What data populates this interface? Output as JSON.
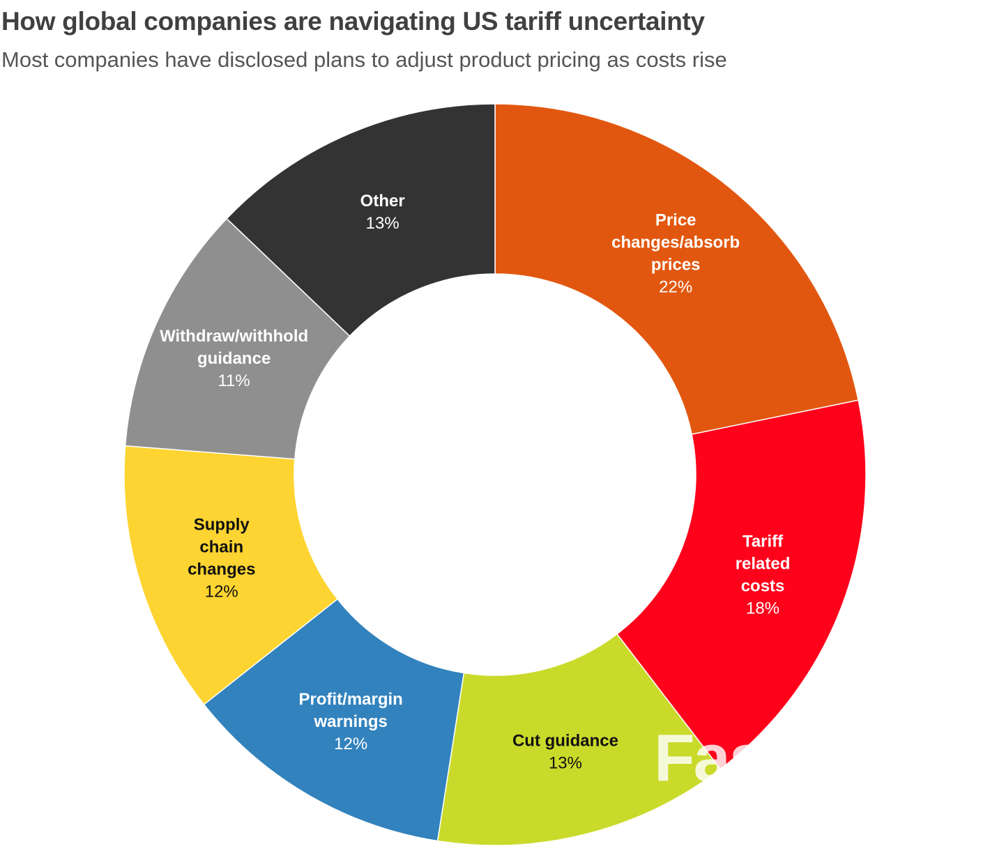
{
  "header": {
    "title": "How global companies are navigating US tariff uncertainty",
    "subtitle": "Most companies have disclosed plans to adjust product pricing as costs rise"
  },
  "watermark": {
    "text": "FastBull"
  },
  "chart_data": {
    "type": "pie",
    "style": "donut",
    "start": "top, clockwise",
    "slices": [
      {
        "label": "Price changes/absorb prices",
        "label_lines": [
          "Price",
          "changes/absorb",
          "prices"
        ],
        "value": 22,
        "value_label": "22%",
        "color": "#e2570f",
        "text_color": "#ffffff"
      },
      {
        "label": "Tariff related costs",
        "label_lines": [
          "Tariff",
          "related",
          "costs"
        ],
        "value": 18,
        "value_label": "18%",
        "color": "#fe011b",
        "text_color": "#ffffff"
      },
      {
        "label": "Cut guidance",
        "label_lines": [
          "Cut guidance"
        ],
        "value": 13,
        "value_label": "13%",
        "color": "#cada2b",
        "text_color": "#111111"
      },
      {
        "label": "Profit/margin warnings",
        "label_lines": [
          "Profit/margin",
          "warnings"
        ],
        "value": 12,
        "value_label": "12%",
        "color": "#3282bd",
        "text_color": "#ffffff"
      },
      {
        "label": "Supply chain changes",
        "label_lines": [
          "Supply",
          "chain",
          "changes"
        ],
        "value": 12,
        "value_label": "12%",
        "color": "#fdd431",
        "text_color": "#111111"
      },
      {
        "label": "Withdraw/withhold guidance",
        "label_lines": [
          "Withdraw/withhold",
          "guidance"
        ],
        "value": 11,
        "value_label": "11%",
        "color": "#8f8f8f",
        "text_color": "#ffffff"
      },
      {
        "label": "Other",
        "label_lines": [
          "Other"
        ],
        "value": 13,
        "value_label": "13%",
        "color": "#333333",
        "text_color": "#ffffff"
      }
    ]
  }
}
